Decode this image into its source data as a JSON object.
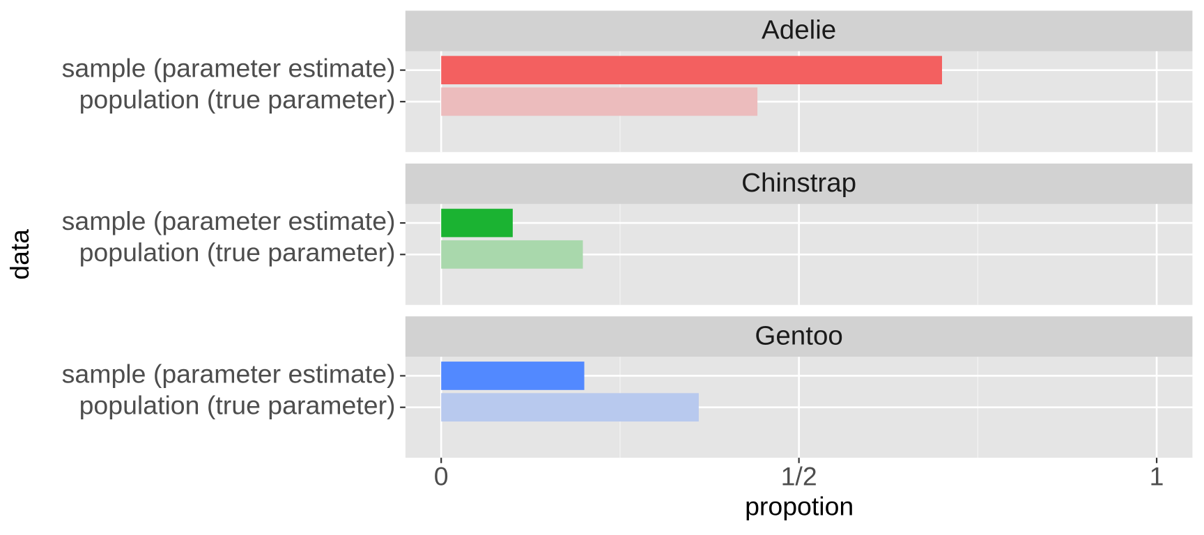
{
  "chart_data": {
    "type": "bar",
    "xlabel": "propotion",
    "ylabel": "data",
    "categories": [
      "sample (parameter estimate)",
      "population (true parameter)"
    ],
    "xlim": [
      -0.05,
      1.05
    ],
    "xticks": [
      0,
      {
        "value": 0.5,
        "label": "1/2"
      },
      1
    ],
    "grid": true,
    "panels": [
      {
        "title": "Adelie",
        "colors": [
          "#f36060",
          "#ecbcbd"
        ],
        "values": [
          0.7,
          0.442
        ]
      },
      {
        "title": "Chinstrap",
        "colors": [
          "#1bb332",
          "#a9d8ac"
        ],
        "values": [
          0.1,
          0.198
        ]
      },
      {
        "title": "Gentoo",
        "colors": [
          "#5289ff",
          "#b8c9ee"
        ],
        "values": [
          0.2,
          0.36
        ]
      }
    ]
  }
}
